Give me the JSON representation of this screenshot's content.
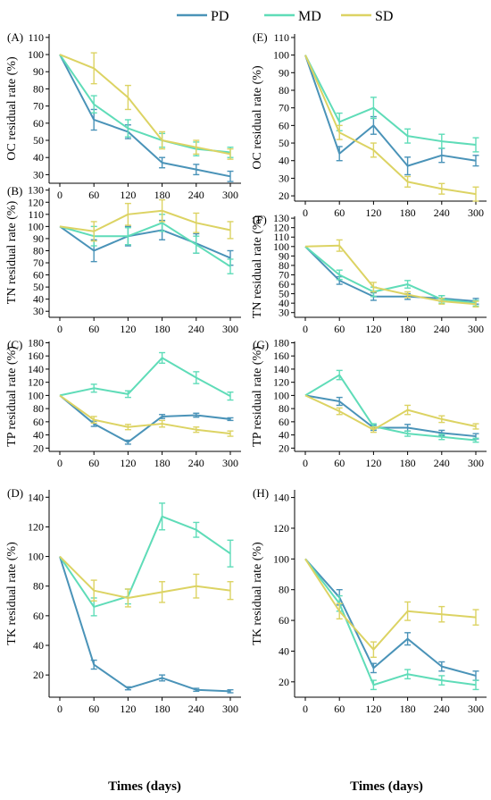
{
  "legend": [
    {
      "name": "PD",
      "color": "#4a93b8"
    },
    {
      "name": "MD",
      "color": "#5fdcb8"
    },
    {
      "name": "SD",
      "color": "#dcd363"
    }
  ],
  "x_axis_label": "Times (days)",
  "chart_data": [
    {
      "type": "line",
      "panel": "(A)",
      "ylabel": "OC residual rate (%)",
      "x": [
        0,
        60,
        120,
        180,
        240,
        300
      ],
      "yticks": [
        30,
        40,
        50,
        60,
        70,
        80,
        90,
        100,
        110
      ],
      "ylim": [
        25,
        112
      ],
      "series": [
        {
          "name": "PD",
          "values": [
            100,
            62,
            55,
            37,
            33,
            29
          ],
          "errors": [
            0,
            6,
            4,
            3,
            3,
            3
          ]
        },
        {
          "name": "MD",
          "values": [
            100,
            71,
            57,
            50,
            45,
            43
          ],
          "errors": [
            0,
            5,
            5,
            4,
            4,
            3
          ]
        },
        {
          "name": "SD",
          "values": [
            100,
            92,
            75,
            50,
            46,
            42
          ],
          "errors": [
            0,
            9,
            7,
            5,
            4,
            3
          ]
        }
      ]
    },
    {
      "type": "line",
      "panel": "(E)",
      "ylabel": "OC residual rate (%)",
      "x": [
        0,
        60,
        120,
        180,
        240,
        300
      ],
      "yticks": [
        20,
        30,
        40,
        50,
        60,
        70,
        80,
        90,
        100,
        110
      ],
      "ylim": [
        17,
        112
      ],
      "series": [
        {
          "name": "PD",
          "values": [
            100,
            44,
            60,
            37,
            43,
            40
          ],
          "errors": [
            0,
            4,
            5,
            5,
            4,
            3
          ]
        },
        {
          "name": "MD",
          "values": [
            100,
            62,
            70,
            54,
            51,
            49
          ],
          "errors": [
            0,
            5,
            6,
            4,
            4,
            4
          ]
        },
        {
          "name": "SD",
          "values": [
            100,
            56,
            46,
            28,
            24,
            21
          ],
          "errors": [
            0,
            4,
            4,
            3,
            3,
            4
          ]
        }
      ]
    },
    {
      "type": "line",
      "panel": "(B)",
      "ylabel": "TN residual rate (%)",
      "x": [
        0,
        60,
        120,
        180,
        240,
        300
      ],
      "yticks": [
        30,
        40,
        50,
        60,
        70,
        80,
        90,
        100,
        110,
        120,
        130
      ],
      "ylim": [
        25,
        132
      ],
      "series": [
        {
          "name": "PD",
          "values": [
            100,
            80,
            92,
            97,
            86,
            74
          ],
          "errors": [
            0,
            9,
            8,
            8,
            8,
            6
          ]
        },
        {
          "name": "MD",
          "values": [
            100,
            92,
            92,
            103,
            85,
            67
          ],
          "errors": [
            0,
            8,
            7,
            7,
            7,
            6
          ]
        },
        {
          "name": "SD",
          "values": [
            100,
            96,
            110,
            113,
            103,
            97
          ],
          "errors": [
            0,
            8,
            9,
            9,
            8,
            7
          ]
        }
      ]
    },
    {
      "type": "line",
      "panel": "(F)",
      "ylabel": "TN residual rate (%)",
      "x": [
        0,
        60,
        120,
        180,
        240,
        300
      ],
      "yticks": [
        30,
        40,
        50,
        60,
        70,
        80,
        90,
        100,
        110,
        120,
        130
      ],
      "ylim": [
        25,
        132
      ],
      "series": [
        {
          "name": "PD",
          "values": [
            100,
            64,
            47,
            47,
            45,
            42
          ],
          "errors": [
            0,
            4,
            4,
            3,
            3,
            3
          ]
        },
        {
          "name": "MD",
          "values": [
            100,
            70,
            52,
            60,
            44,
            40
          ],
          "errors": [
            0,
            5,
            5,
            4,
            4,
            3
          ]
        },
        {
          "name": "SD",
          "values": [
            100,
            101,
            57,
            49,
            42,
            39
          ],
          "errors": [
            0,
            6,
            5,
            3,
            3,
            3
          ]
        }
      ]
    },
    {
      "type": "line",
      "panel": "(C)",
      "ylabel": "TP residual rate (%)",
      "x": [
        0,
        60,
        120,
        180,
        240,
        300
      ],
      "yticks": [
        20,
        40,
        60,
        80,
        100,
        120,
        140,
        160,
        180
      ],
      "ylim": [
        15,
        182
      ],
      "series": [
        {
          "name": "PD",
          "values": [
            100,
            57,
            29,
            68,
            70,
            64
          ],
          "errors": [
            0,
            4,
            3,
            3,
            3,
            2
          ]
        },
        {
          "name": "MD",
          "values": [
            100,
            111,
            102,
            157,
            127,
            99
          ],
          "errors": [
            0,
            6,
            5,
            8,
            9,
            6
          ]
        },
        {
          "name": "SD",
          "values": [
            100,
            63,
            52,
            57,
            48,
            42
          ],
          "errors": [
            0,
            5,
            4,
            5,
            4,
            4
          ]
        }
      ]
    },
    {
      "type": "line",
      "panel": "(G)",
      "ylabel": "TP residual rate (%)",
      "x": [
        0,
        60,
        120,
        180,
        240,
        300
      ],
      "yticks": [
        20,
        40,
        60,
        80,
        100,
        120,
        140,
        160,
        180
      ],
      "ylim": [
        15,
        182
      ],
      "series": [
        {
          "name": "PD",
          "values": [
            100,
            91,
            51,
            51,
            43,
            38
          ],
          "errors": [
            0,
            6,
            4,
            5,
            4,
            4
          ]
        },
        {
          "name": "MD",
          "values": [
            100,
            131,
            53,
            42,
            37,
            32
          ],
          "errors": [
            0,
            7,
            4,
            4,
            4,
            3
          ]
        },
        {
          "name": "SD",
          "values": [
            100,
            76,
            48,
            78,
            64,
            53
          ],
          "errors": [
            0,
            5,
            4,
            7,
            5,
            4
          ]
        }
      ]
    },
    {
      "type": "line",
      "panel": "(D)",
      "ylabel": "TK residual rate (%)",
      "x": [
        0,
        60,
        120,
        180,
        240,
        300
      ],
      "yticks": [
        20,
        40,
        60,
        80,
        100,
        120,
        140
      ],
      "ylim": [
        5,
        145
      ],
      "series": [
        {
          "name": "PD",
          "values": [
            100,
            27,
            11,
            18,
            10,
            9
          ],
          "errors": [
            0,
            3,
            1,
            2,
            1,
            1
          ]
        },
        {
          "name": "MD",
          "values": [
            100,
            66,
            73,
            127,
            118,
            102
          ],
          "errors": [
            0,
            6,
            5,
            9,
            5,
            9
          ]
        },
        {
          "name": "SD",
          "values": [
            100,
            77,
            72,
            76,
            80,
            77
          ],
          "errors": [
            0,
            7,
            6,
            7,
            8,
            6
          ]
        }
      ]
    },
    {
      "type": "line",
      "panel": "(H)",
      "ylabel": "TK residual rate (%)",
      "x": [
        0,
        60,
        120,
        180,
        240,
        300
      ],
      "yticks": [
        20,
        40,
        60,
        80,
        100,
        120,
        140
      ],
      "ylim": [
        10,
        145
      ],
      "series": [
        {
          "name": "PD",
          "values": [
            100,
            75,
            29,
            48,
            30,
            24
          ],
          "errors": [
            0,
            5,
            3,
            4,
            3,
            3
          ]
        },
        {
          "name": "MD",
          "values": [
            100,
            71,
            18,
            25,
            21,
            18
          ],
          "errors": [
            0,
            5,
            3,
            3,
            3,
            3
          ]
        },
        {
          "name": "SD",
          "values": [
            100,
            66,
            41,
            66,
            64,
            62
          ],
          "errors": [
            0,
            5,
            5,
            6,
            5,
            5
          ]
        }
      ]
    }
  ]
}
